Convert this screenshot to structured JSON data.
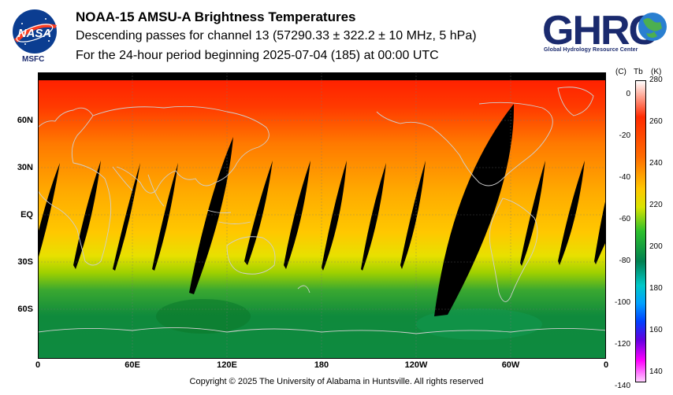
{
  "header": {
    "title": "NOAA-15 AMSU-A Brightness Temperatures",
    "subtitle": "Descending passes for channel 13 (57290.33 ± 322.2 ± 10 MHz, 5 hPa)",
    "period": "For the 24-hour period beginning 2025-07-04 (185) at 00:00 UTC"
  },
  "logos": {
    "nasa_text": "NASA",
    "msfc_text": "MSFC",
    "ghrc_text": "GHRC",
    "ghrc_subtitle": "Global Hydrology Resource Center"
  },
  "map": {
    "lat_labels": [
      "60N",
      "30N",
      "EQ",
      "30S",
      "60S"
    ],
    "lon_labels": [
      "0",
      "60E",
      "120E",
      "180",
      "120W",
      "60W",
      "0"
    ],
    "colors": {
      "background_black": "#000000",
      "grid": "#777777",
      "coast": "#c8c8c8"
    }
  },
  "colorbar": {
    "header_c": "(C)",
    "header_tb": "Tb",
    "header_k": "(K)",
    "celsius_labels": [
      "0",
      "-20",
      "-40",
      "-60",
      "-80",
      "-100",
      "-120",
      "-140"
    ],
    "kelvin_labels": [
      "280",
      "260",
      "240",
      "220",
      "200",
      "180",
      "160",
      "140"
    ],
    "range_k": [
      135,
      280
    ]
  },
  "footer": {
    "copyright": "Copyright © 2025 The University of Alabama in Huntsville.  All rights reserved"
  }
}
